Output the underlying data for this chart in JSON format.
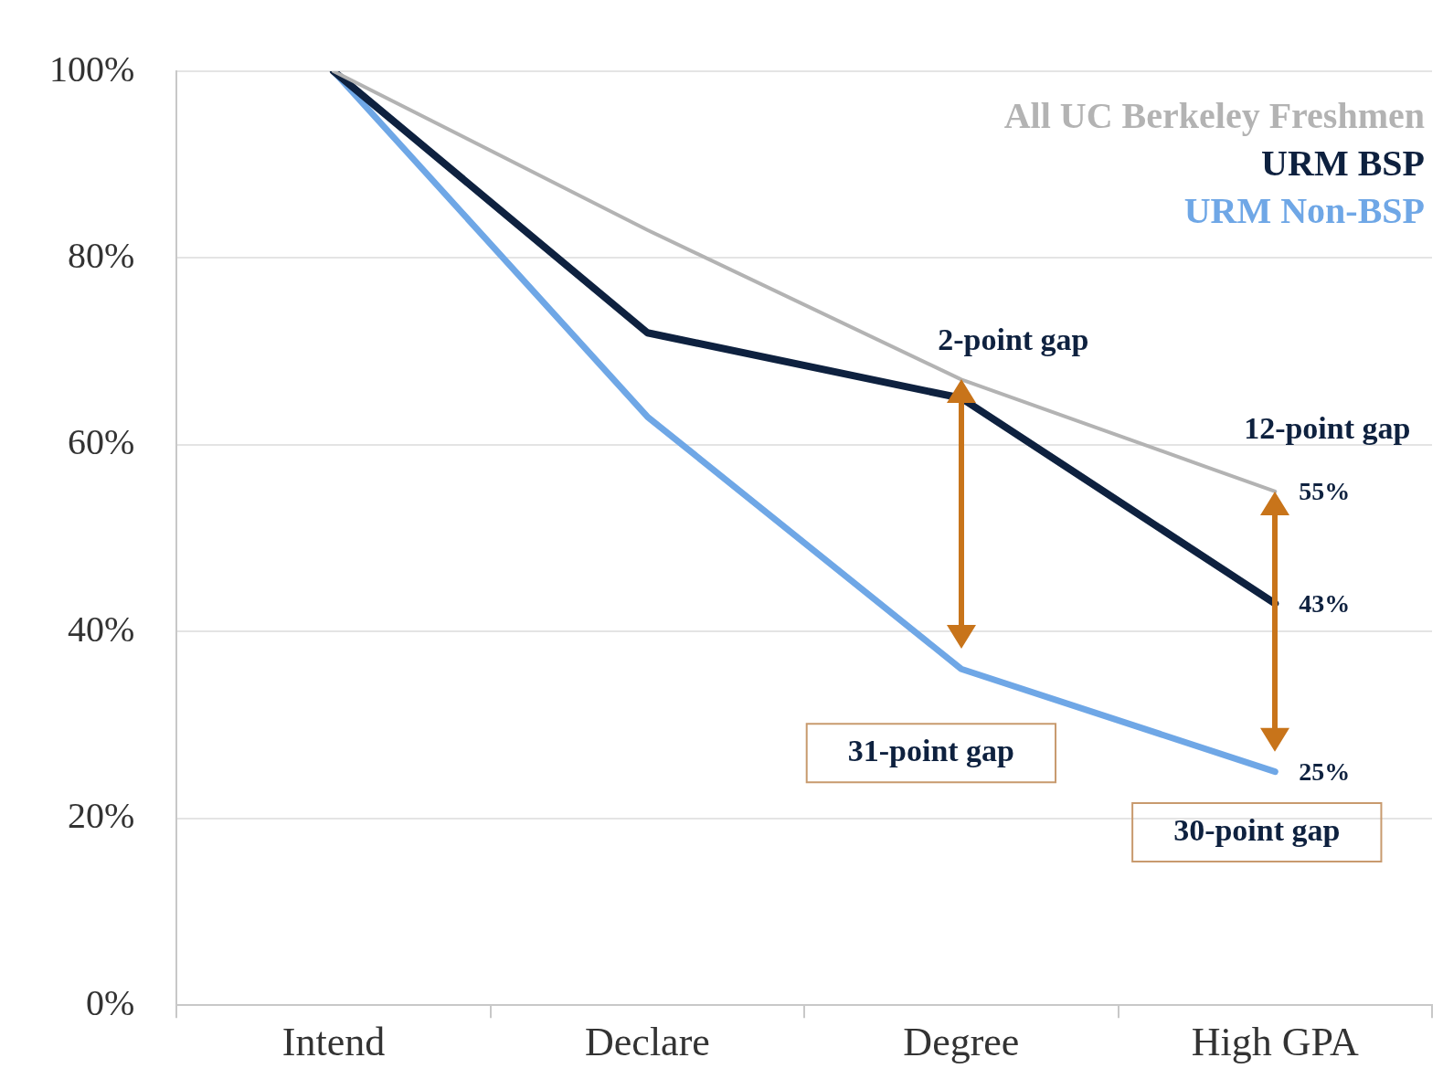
{
  "chart_data": {
    "type": "line",
    "categories": [
      "Intend",
      "Declare",
      "Degree",
      "High GPA"
    ],
    "series": [
      {
        "name": "All UC Berkeley Freshmen",
        "color": "#b3b3b3",
        "values": [
          100,
          83,
          67,
          55
        ]
      },
      {
        "name": "URM BSP",
        "color": "#0e213f",
        "values": [
          100,
          72,
          65,
          43
        ]
      },
      {
        "name": "URM Non-BSP",
        "color": "#6fa7e6",
        "values": [
          100,
          63,
          36,
          25
        ]
      }
    ],
    "ylim": [
      0,
      100
    ],
    "yticks": [
      {
        "value": 0,
        "label": "0%"
      },
      {
        "value": 20,
        "label": "20%"
      },
      {
        "value": 40,
        "label": "40%"
      },
      {
        "value": 60,
        "label": "60%"
      },
      {
        "value": 80,
        "label": "80%"
      },
      {
        "value": 100,
        "label": "100%"
      }
    ],
    "grid": "y",
    "legend": "top right",
    "marker": "none",
    "annotations": [
      "2-point gap",
      "12-point gap",
      "31-point gap",
      "30-point gap",
      {
        "text": "55%",
        "x": "High GPA",
        "y": 55
      },
      {
        "text": "43%",
        "x": "High GPA",
        "y": 43
      },
      {
        "text": "25%",
        "x": "High GPA",
        "y": 25
      }
    ]
  }
}
